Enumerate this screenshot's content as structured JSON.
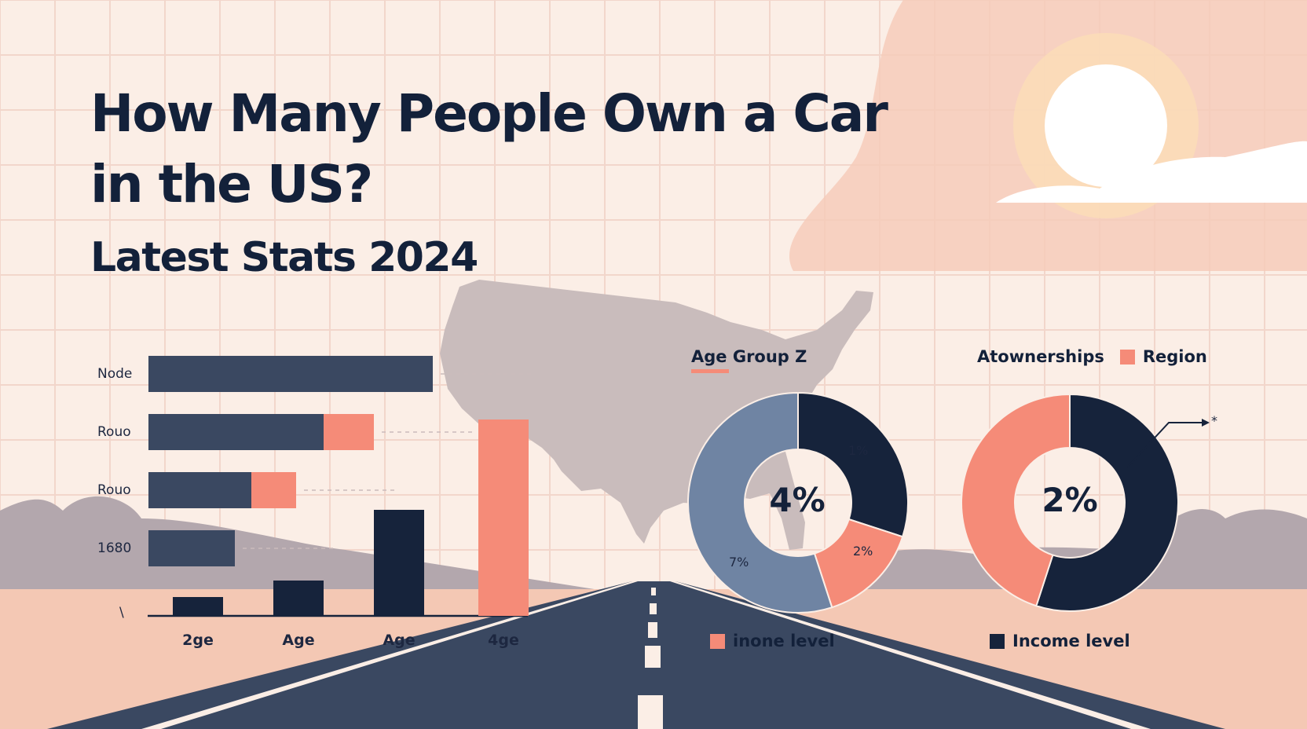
{
  "title": "How Many People Own a Car in the US?",
  "subtitle": "Latest Stats 2024",
  "colors": {
    "navy": "#16233b",
    "slate": "#3a4861",
    "salmon": "#f58b78",
    "steel": "#6f84a3",
    "background": "#fbeee6"
  },
  "chart_data": [
    {
      "type": "bar",
      "orientation": "horizontal",
      "categories": [
        "Node",
        "Rouo",
        "Rouo",
        "1680"
      ],
      "series": [
        {
          "color": "#3a4861",
          "values": [
            362,
            223,
            131,
            110
          ]
        },
        {
          "color": "#f58b78",
          "values": [
            0,
            64,
            57,
            0
          ]
        }
      ],
      "grid": true
    },
    {
      "type": "bar",
      "categories": [
        "2ge",
        "Age",
        "Age",
        "4ge"
      ],
      "values": [
        24,
        45,
        135,
        250
      ],
      "colors": [
        "#16233b",
        "#16233b",
        "#16233b",
        "#f58b78"
      ],
      "ytick": "\\"
    },
    {
      "type": "pie",
      "title": "Age Group Z",
      "center_label": "4%",
      "slices": [
        {
          "label": "1%",
          "value": 30,
          "color": "#16233b"
        },
        {
          "label": "2%",
          "value": 15,
          "color": "#f58b78"
        },
        {
          "label": "7%",
          "value": 55,
          "color": "#6f84a3"
        }
      ],
      "legend": [
        {
          "label": "inone level",
          "color": "#f58b78"
        }
      ]
    },
    {
      "type": "pie",
      "center_label": "2%",
      "slices": [
        {
          "value": 55,
          "color": "#16233b"
        },
        {
          "value": 45,
          "color": "#f58b78"
        }
      ],
      "header": [
        {
          "label": "Atownerships"
        },
        {
          "label": "Region",
          "color": "#f58b78"
        }
      ],
      "legend": [
        {
          "label": "Income level",
          "color": "#16233b"
        }
      ],
      "annotation": "*"
    }
  ]
}
